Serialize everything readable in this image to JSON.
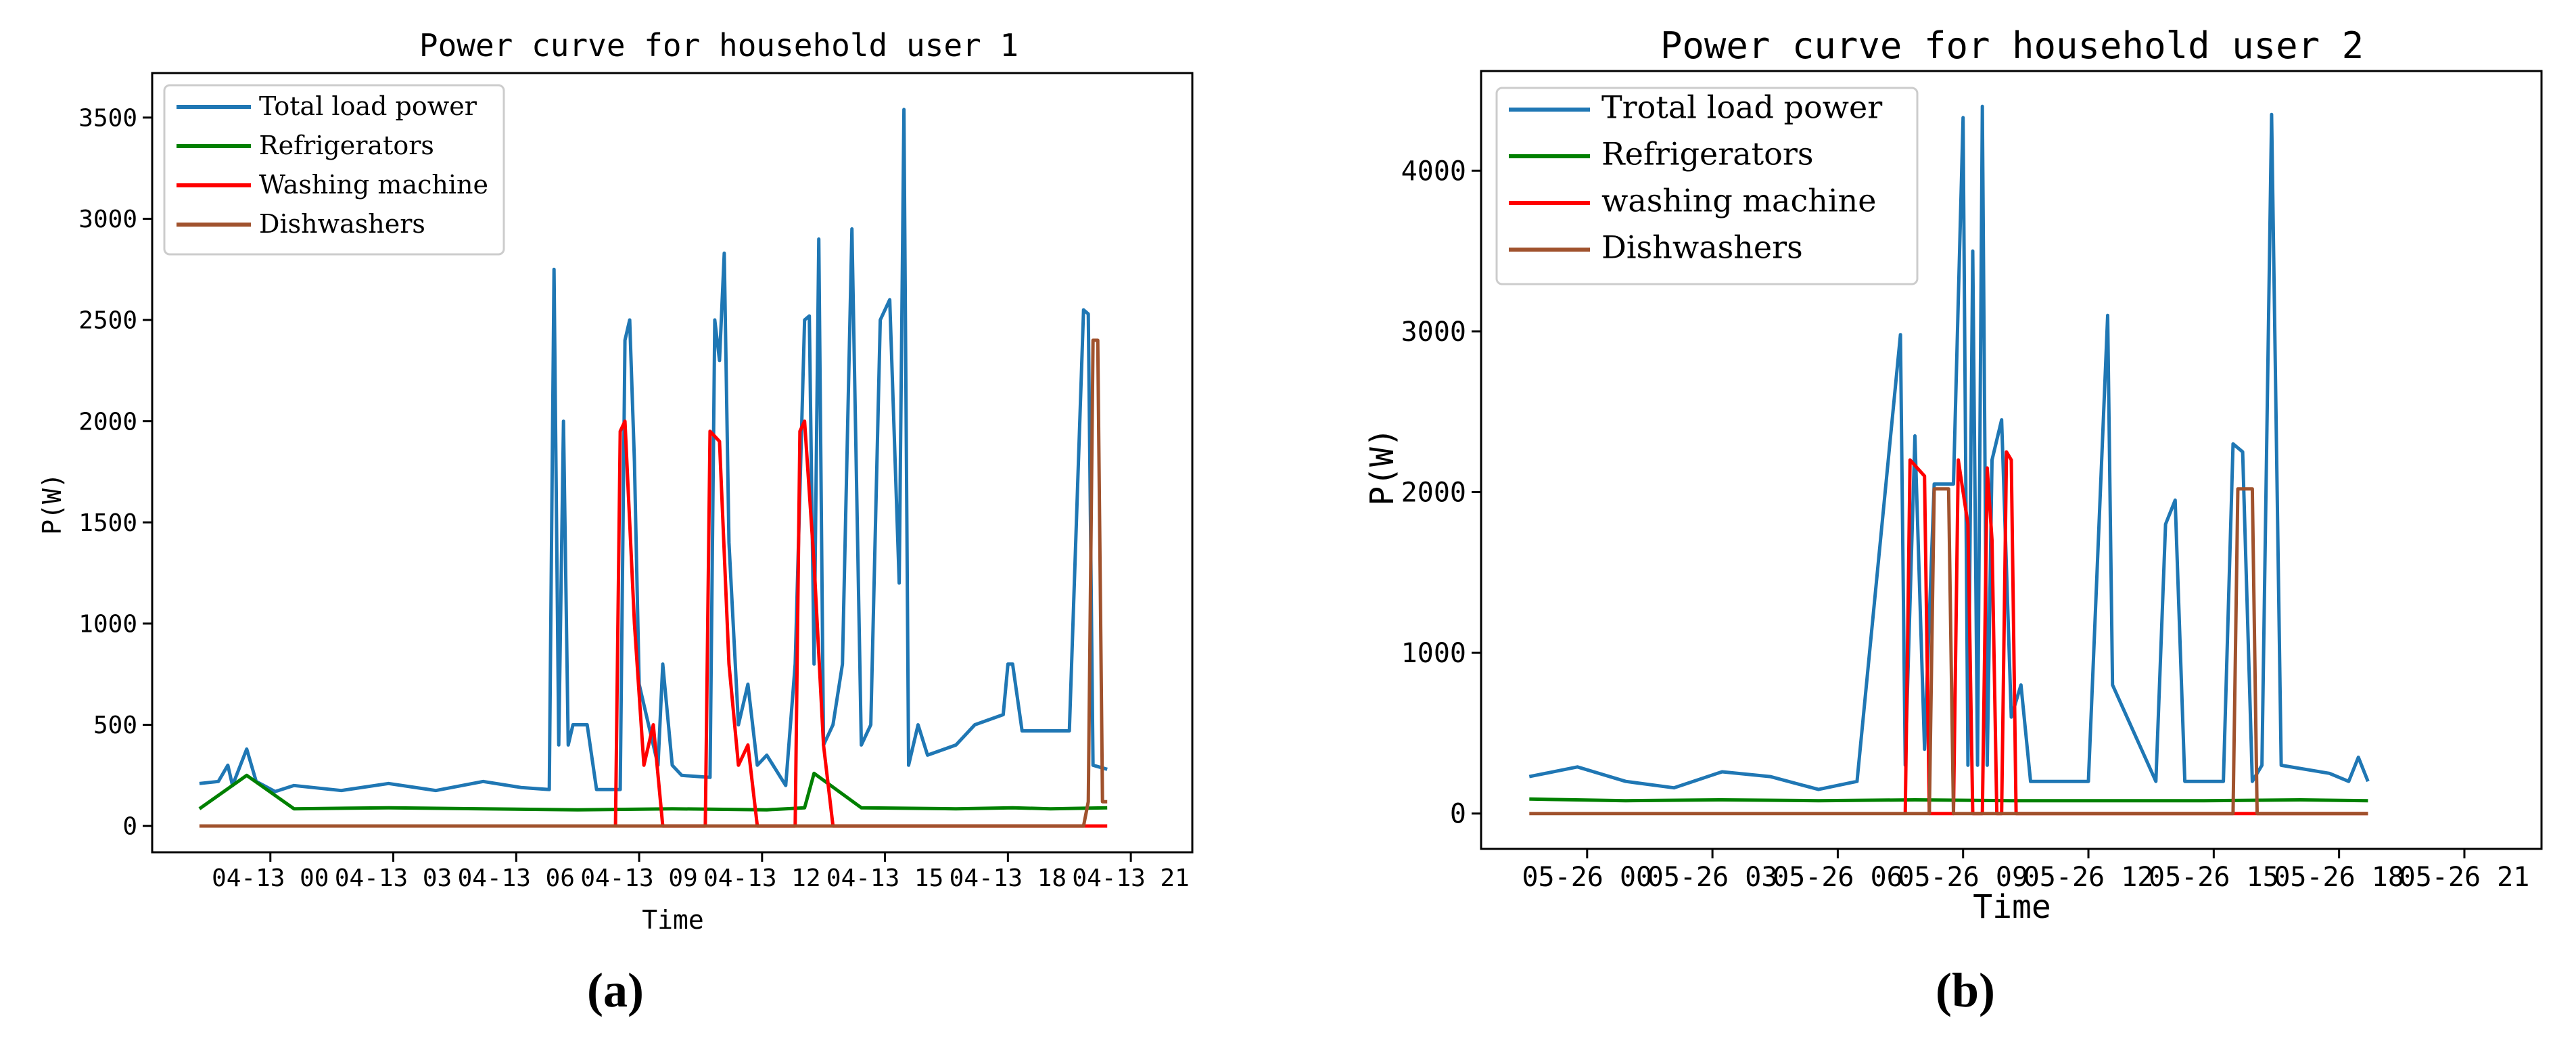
{
  "figure": {
    "caption_a": "(a)",
    "caption_b": "(b)"
  },
  "chart_data": [
    {
      "type": "line",
      "title": "Power curve for household user 1",
      "xlabel": "Time",
      "ylabel": "P(W)",
      "ylim": [
        -130,
        3720
      ],
      "xlim": [
        -0.05,
        1.05
      ],
      "yticks": [
        0,
        500,
        1000,
        1500,
        2000,
        2500,
        3000,
        3500
      ],
      "xticks": [
        {
          "t": 0.075,
          "label": "04-13 00"
        },
        {
          "t": 0.205,
          "label": "04-13 03"
        },
        {
          "t": 0.335,
          "label": "04-13 06"
        },
        {
          "t": 0.465,
          "label": "04-13 09"
        },
        {
          "t": 0.595,
          "label": "04-13 12"
        },
        {
          "t": 0.725,
          "label": "04-13 15"
        },
        {
          "t": 0.855,
          "label": "04-13 18"
        },
        {
          "t": 0.985,
          "label": "04-13 21"
        }
      ],
      "legend": {
        "position": "upper-left",
        "entries": [
          "Total load power",
          "Refrigerators",
          "Washing machine",
          "Dishwashers"
        ]
      },
      "series": [
        {
          "name": "Total load power",
          "color": "#1f77b4",
          "points": [
            [
              0,
              210
            ],
            [
              0.02,
              220
            ],
            [
              0.03,
              300
            ],
            [
              0.035,
              200
            ],
            [
              0.05,
              380
            ],
            [
              0.06,
              220
            ],
            [
              0.08,
              170
            ],
            [
              0.1,
              200
            ],
            [
              0.15,
              175
            ],
            [
              0.2,
              210
            ],
            [
              0.25,
              175
            ],
            [
              0.3,
              220
            ],
            [
              0.34,
              190
            ],
            [
              0.37,
              180
            ],
            [
              0.375,
              2750
            ],
            [
              0.38,
              400
            ],
            [
              0.385,
              2000
            ],
            [
              0.39,
              400
            ],
            [
              0.395,
              500
            ],
            [
              0.41,
              500
            ],
            [
              0.42,
              180
            ],
            [
              0.445,
              180
            ],
            [
              0.45,
              2400
            ],
            [
              0.455,
              2500
            ],
            [
              0.46,
              1800
            ],
            [
              0.465,
              700
            ],
            [
              0.475,
              500
            ],
            [
              0.485,
              300
            ],
            [
              0.49,
              800
            ],
            [
              0.5,
              300
            ],
            [
              0.51,
              250
            ],
            [
              0.54,
              240
            ],
            [
              0.545,
              2500
            ],
            [
              0.55,
              2300
            ],
            [
              0.555,
              2830
            ],
            [
              0.56,
              1400
            ],
            [
              0.57,
              500
            ],
            [
              0.58,
              700
            ],
            [
              0.59,
              300
            ],
            [
              0.6,
              350
            ],
            [
              0.62,
              200
            ],
            [
              0.63,
              800
            ],
            [
              0.64,
              2500
            ],
            [
              0.645,
              2520
            ],
            [
              0.65,
              800
            ],
            [
              0.655,
              2900
            ],
            [
              0.66,
              400
            ],
            [
              0.67,
              500
            ],
            [
              0.68,
              800
            ],
            [
              0.69,
              2950
            ],
            [
              0.7,
              400
            ],
            [
              0.71,
              500
            ],
            [
              0.72,
              2500
            ],
            [
              0.73,
              2600
            ],
            [
              0.74,
              1200
            ],
            [
              0.745,
              3540
            ],
            [
              0.75,
              300
            ],
            [
              0.76,
              500
            ],
            [
              0.77,
              350
            ],
            [
              0.8,
              400
            ],
            [
              0.82,
              500
            ],
            [
              0.85,
              550
            ],
            [
              0.855,
              800
            ],
            [
              0.86,
              800
            ],
            [
              0.87,
              470
            ],
            [
              0.92,
              470
            ],
            [
              0.935,
              2550
            ],
            [
              0.94,
              2530
            ],
            [
              0.945,
              300
            ],
            [
              0.96,
              280
            ]
          ]
        },
        {
          "name": "Refrigerators",
          "color": "#008000",
          "points": [
            [
              0,
              85
            ],
            [
              0.05,
              250
            ],
            [
              0.1,
              85
            ],
            [
              0.2,
              90
            ],
            [
              0.3,
              85
            ],
            [
              0.4,
              80
            ],
            [
              0.5,
              85
            ],
            [
              0.6,
              80
            ],
            [
              0.64,
              90
            ],
            [
              0.65,
              260
            ],
            [
              0.7,
              90
            ],
            [
              0.8,
              85
            ],
            [
              0.86,
              90
            ],
            [
              0.9,
              85
            ],
            [
              0.96,
              90
            ]
          ]
        },
        {
          "name": "Washing machine",
          "color": "#ff0000",
          "points": [
            [
              0.44,
              0
            ],
            [
              0.445,
              1950
            ],
            [
              0.45,
              2000
            ],
            [
              0.46,
              1000
            ],
            [
              0.47,
              300
            ],
            [
              0.48,
              500
            ],
            [
              0.49,
              0
            ],
            [
              0.535,
              0
            ],
            [
              0.54,
              1950
            ],
            [
              0.55,
              1900
            ],
            [
              0.56,
              800
            ],
            [
              0.57,
              300
            ],
            [
              0.58,
              400
            ],
            [
              0.59,
              0
            ],
            [
              0.63,
              0
            ],
            [
              0.635,
              1950
            ],
            [
              0.64,
              2000
            ],
            [
              0.65,
              1300
            ],
            [
              0.66,
              400
            ],
            [
              0.67,
              0
            ],
            [
              0.96,
              0
            ]
          ]
        },
        {
          "name": "Dishwashers",
          "color": "#a0522d",
          "points": [
            [
              0,
              0
            ],
            [
              0.935,
              0
            ],
            [
              0.94,
              120
            ],
            [
              0.945,
              2400
            ],
            [
              0.95,
              2400
            ],
            [
              0.955,
              120
            ],
            [
              0.96,
              120
            ]
          ]
        }
      ]
    },
    {
      "type": "line",
      "title": "Power curve for household user 2",
      "xlabel": "Time",
      "ylabel": "P(W)",
      "ylim": [
        -220,
        4620
      ],
      "xlim": [
        -0.05,
        1.05
      ],
      "yticks": [
        0,
        1000,
        2000,
        3000,
        4000
      ],
      "xticks": [
        {
          "t": 0.06,
          "label": "05-26 00"
        },
        {
          "t": 0.19,
          "label": "05-26 03"
        },
        {
          "t": 0.32,
          "label": "05-26 06"
        },
        {
          "t": 0.45,
          "label": "05-26 09"
        },
        {
          "t": 0.58,
          "label": "05-26 12"
        },
        {
          "t": 0.71,
          "label": "05-26 15"
        },
        {
          "t": 0.84,
          "label": "05-26 18"
        },
        {
          "t": 0.97,
          "label": "05-26 21"
        }
      ],
      "legend": {
        "position": "upper-left",
        "entries": [
          "Trotal load power",
          "Refrigerators",
          "washing machine",
          "Dishwashers"
        ]
      },
      "series": [
        {
          "name": "Trotal load power",
          "color": "#1f77b4",
          "points": [
            [
              0,
              230
            ],
            [
              0.05,
              290
            ],
            [
              0.1,
              200
            ],
            [
              0.15,
              160
            ],
            [
              0.2,
              260
            ],
            [
              0.25,
              230
            ],
            [
              0.3,
              150
            ],
            [
              0.34,
              200
            ],
            [
              0.385,
              2980
            ],
            [
              0.39,
              300
            ],
            [
              0.4,
              2350
            ],
            [
              0.41,
              400
            ],
            [
              0.42,
              2050
            ],
            [
              0.44,
              2050
            ],
            [
              0.45,
              4330
            ],
            [
              0.455,
              300
            ],
            [
              0.46,
              3500
            ],
            [
              0.465,
              300
            ],
            [
              0.47,
              4400
            ],
            [
              0.475,
              300
            ],
            [
              0.48,
              2200
            ],
            [
              0.49,
              2450
            ],
            [
              0.5,
              600
            ],
            [
              0.51,
              800
            ],
            [
              0.52,
              200
            ],
            [
              0.58,
              200
            ],
            [
              0.6,
              3100
            ],
            [
              0.605,
              800
            ],
            [
              0.62,
              600
            ],
            [
              0.65,
              200
            ],
            [
              0.66,
              1800
            ],
            [
              0.67,
              1950
            ],
            [
              0.68,
              200
            ],
            [
              0.72,
              200
            ],
            [
              0.73,
              2300
            ],
            [
              0.74,
              2250
            ],
            [
              0.75,
              200
            ],
            [
              0.76,
              300
            ],
            [
              0.77,
              4350
            ],
            [
              0.78,
              300
            ],
            [
              0.83,
              250
            ],
            [
              0.85,
              200
            ],
            [
              0.86,
              350
            ],
            [
              0.87,
              200
            ]
          ]
        },
        {
          "name": "Refrigerators",
          "color": "#008000",
          "points": [
            [
              0,
              90
            ],
            [
              0.1,
              80
            ],
            [
              0.2,
              85
            ],
            [
              0.3,
              80
            ],
            [
              0.4,
              85
            ],
            [
              0.5,
              80
            ],
            [
              0.6,
              80
            ],
            [
              0.7,
              80
            ],
            [
              0.8,
              85
            ],
            [
              0.87,
              80
            ]
          ]
        },
        {
          "name": "washing machine",
          "color": "#ff0000",
          "points": [
            [
              0.39,
              0
            ],
            [
              0.395,
              2200
            ],
            [
              0.41,
              2100
            ],
            [
              0.415,
              0
            ],
            [
              0.44,
              0
            ],
            [
              0.445,
              2200
            ],
            [
              0.455,
              1800
            ],
            [
              0.46,
              0
            ],
            [
              0.47,
              0
            ],
            [
              0.475,
              2150
            ],
            [
              0.48,
              1700
            ],
            [
              0.485,
              0
            ],
            [
              0.49,
              0
            ],
            [
              0.495,
              2250
            ],
            [
              0.5,
              2200
            ],
            [
              0.505,
              0
            ],
            [
              0.87,
              0
            ]
          ]
        },
        {
          "name": "Dishwashers",
          "color": "#a0522d",
          "points": [
            [
              0,
              0
            ],
            [
              0.415,
              0
            ],
            [
              0.42,
              2020
            ],
            [
              0.435,
              2020
            ],
            [
              0.44,
              0
            ],
            [
              0.73,
              0
            ],
            [
              0.735,
              2020
            ],
            [
              0.75,
              2020
            ],
            [
              0.755,
              0
            ],
            [
              0.87,
              0
            ]
          ]
        }
      ]
    }
  ]
}
